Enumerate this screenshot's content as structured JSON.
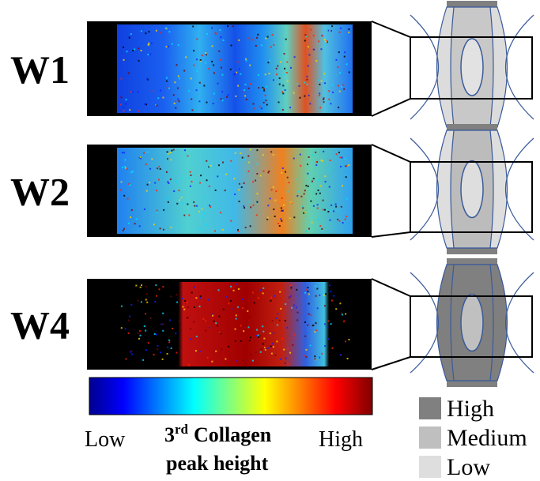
{
  "panels": [
    {
      "label": "W1"
    },
    {
      "label": "W2"
    },
    {
      "label": "W4"
    }
  ],
  "colorbar": {
    "low": "Low",
    "high": "High",
    "title_num": "3",
    "title_sup": "rd",
    "title_word": "Collagen",
    "title_line2": "peak height"
  },
  "legend": [
    {
      "label": "High"
    },
    {
      "label": "Medium"
    },
    {
      "label": "Low"
    }
  ]
}
